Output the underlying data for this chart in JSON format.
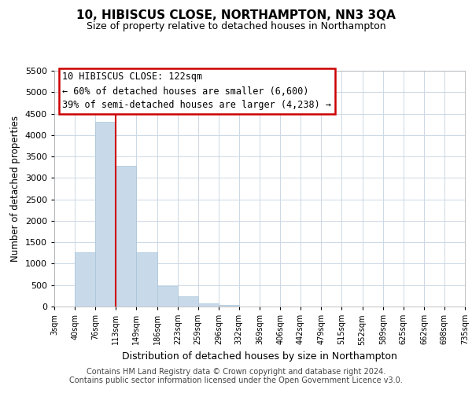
{
  "title": "10, HIBISCUS CLOSE, NORTHAMPTON, NN3 3QA",
  "subtitle": "Size of property relative to detached houses in Northampton",
  "xlabel": "Distribution of detached houses by size in Northampton",
  "ylabel": "Number of detached properties",
  "bar_color": "#c8daea",
  "bar_edge_color": "#a8c4d8",
  "vline_x": 113,
  "vline_color": "#cc0000",
  "bin_edges": [
    3,
    40,
    76,
    113,
    149,
    186,
    223,
    259,
    296,
    332,
    369,
    406,
    442,
    479,
    515,
    552,
    589,
    625,
    662,
    698,
    735
  ],
  "bin_labels": [
    "3sqm",
    "40sqm",
    "76sqm",
    "113sqm",
    "149sqm",
    "186sqm",
    "223sqm",
    "259sqm",
    "296sqm",
    "332sqm",
    "369sqm",
    "406sqm",
    "442sqm",
    "479sqm",
    "515sqm",
    "552sqm",
    "589sqm",
    "625sqm",
    "662sqm",
    "698sqm",
    "735sqm"
  ],
  "bar_heights": [
    0,
    1270,
    4300,
    3280,
    1270,
    480,
    240,
    75,
    45,
    0,
    0,
    0,
    0,
    0,
    0,
    0,
    0,
    0,
    0,
    0
  ],
  "ylim": [
    0,
    5500
  ],
  "yticks": [
    0,
    500,
    1000,
    1500,
    2000,
    2500,
    3000,
    3500,
    4000,
    4500,
    5000,
    5500
  ],
  "annotation_title": "10 HIBISCUS CLOSE: 122sqm",
  "annotation_line1": "← 60% of detached houses are smaller (6,600)",
  "annotation_line2": "39% of semi-detached houses are larger (4,238) →",
  "annotation_box_color": "#ffffff",
  "annotation_box_edge": "#cc0000",
  "footer1": "Contains HM Land Registry data © Crown copyright and database right 2024.",
  "footer2": "Contains public sector information licensed under the Open Government Licence v3.0.",
  "background_color": "#ffffff",
  "grid_color": "#ccd8e4",
  "title_fontsize": 11,
  "subtitle_fontsize": 9,
  "footer_fontsize": 7
}
